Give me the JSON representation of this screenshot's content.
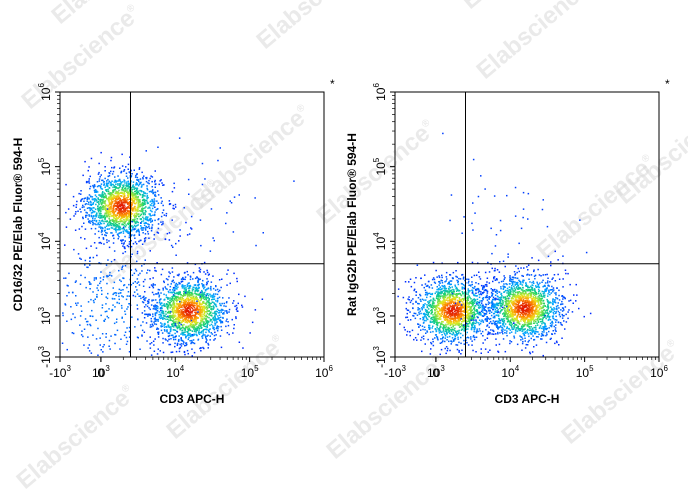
{
  "watermark_text": "Elabscience",
  "watermark_mark": "®",
  "chart_data": [
    {
      "type": "scatter",
      "subtype": "flow-cytometry-density-dot-plot",
      "title": "",
      "xlabel": "CD3 APC-H",
      "ylabel": "CD16/32 PE/Elab Fluor® 594-H",
      "corner_mark": "*",
      "x_scale": "biexponential (log)",
      "y_scale": "biexponential (log)",
      "xlim": [
        "-10^3",
        "10^6"
      ],
      "ylim": [
        "-10^3",
        "10^6"
      ],
      "x_ticks": [
        {
          "base": "-10",
          "exp": "3",
          "value": -1000
        },
        {
          "base": "0",
          "exp": "",
          "value": 0
        },
        {
          "base": "10",
          "exp": "3",
          "value": 1000
        },
        {
          "base": "10",
          "exp": "4",
          "value": 10000
        },
        {
          "base": "10",
          "exp": "5",
          "value": 100000
        },
        {
          "base": "10",
          "exp": "6",
          "value": 1000000
        }
      ],
      "y_ticks": [
        {
          "base": "-10",
          "exp": "3",
          "value": -1000
        },
        {
          "base": "10",
          "exp": "3",
          "value": 1000
        },
        {
          "base": "10",
          "exp": "4",
          "value": 10000
        },
        {
          "base": "10",
          "exp": "5",
          "value": 100000
        },
        {
          "base": "10",
          "exp": "6",
          "value": 1000000
        }
      ],
      "quadrant_gate": {
        "x": 2500,
        "y": 5000
      },
      "populations": [
        {
          "name": "",
          "x_center": 500,
          "y_center": 30000,
          "relative_density": "high"
        },
        {
          "name": "",
          "x_center": 15000,
          "y_center": 1200,
          "relative_density": "high"
        },
        {
          "name": "",
          "x_center": 300,
          "y_center": 1500,
          "relative_density": "low"
        },
        {
          "name": "",
          "x_center": 15000,
          "y_center": 15000,
          "relative_density": "very low"
        }
      ]
    },
    {
      "type": "scatter",
      "subtype": "flow-cytometry-density-dot-plot",
      "title": "",
      "xlabel": "CD3 APC-H",
      "ylabel": "Rat IgG2b PE/Elab Fluor® 594-H",
      "corner_mark": "*",
      "x_scale": "biexponential (log)",
      "y_scale": "biexponential (log)",
      "xlim": [
        "-10^3",
        "10^6"
      ],
      "ylim": [
        "-10^3",
        "10^6"
      ],
      "x_ticks": [
        {
          "base": "-10",
          "exp": "3",
          "value": -1000
        },
        {
          "base": "0",
          "exp": "",
          "value": 0
        },
        {
          "base": "10",
          "exp": "3",
          "value": 1000
        },
        {
          "base": "10",
          "exp": "4",
          "value": 10000
        },
        {
          "base": "10",
          "exp": "5",
          "value": 100000
        },
        {
          "base": "10",
          "exp": "6",
          "value": 1000000
        }
      ],
      "y_ticks": [
        {
          "base": "-10",
          "exp": "3",
          "value": -1000
        },
        {
          "base": "10",
          "exp": "3",
          "value": 1000
        },
        {
          "base": "10",
          "exp": "4",
          "value": 10000
        },
        {
          "base": "10",
          "exp": "5",
          "value": 100000
        },
        {
          "base": "10",
          "exp": "6",
          "value": 1000000
        }
      ],
      "quadrant_gate": {
        "x": 2500,
        "y": 5000
      },
      "populations": [
        {
          "name": "",
          "x_center": 400,
          "y_center": 1200,
          "relative_density": "high"
        },
        {
          "name": "",
          "x_center": 15000,
          "y_center": 1300,
          "relative_density": "high"
        },
        {
          "name": "",
          "x_center": 8000,
          "y_center": 15000,
          "relative_density": "very low"
        }
      ]
    }
  ]
}
